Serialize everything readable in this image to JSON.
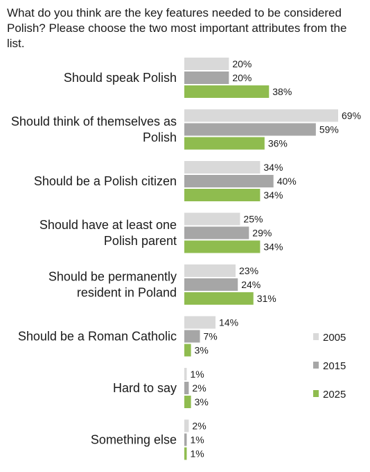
{
  "chart_data": {
    "type": "bar",
    "orientation": "horizontal",
    "title": "What do you think are the key features needed to be considered Polish? Please choose the two most important attributes from the list.",
    "categories": [
      [
        "Should speak Polish"
      ],
      [
        "Should think of themselves as",
        "Polish"
      ],
      [
        "Should be a Polish citizen"
      ],
      [
        "Should have at least one",
        "Polish parent"
      ],
      [
        "Should be permanently",
        "resident in Poland"
      ],
      [
        "Should be a Roman Catholic"
      ],
      [
        "Hard to say"
      ],
      [
        "Something else"
      ]
    ],
    "series": [
      {
        "name": "2005",
        "color": "#d9d9d9",
        "values": [
          20,
          69,
          34,
          25,
          23,
          14,
          1,
          2
        ]
      },
      {
        "name": "2015",
        "color": "#a6a6a6",
        "values": [
          20,
          59,
          40,
          29,
          24,
          7,
          2,
          1
        ]
      },
      {
        "name": "2025",
        "color": "#8fbc4f",
        "values": [
          38,
          36,
          34,
          34,
          31,
          3,
          3,
          1
        ]
      }
    ],
    "value_suffix": "%",
    "xlim": [
      0,
      70
    ],
    "legend_position": "right",
    "grid": false
  }
}
